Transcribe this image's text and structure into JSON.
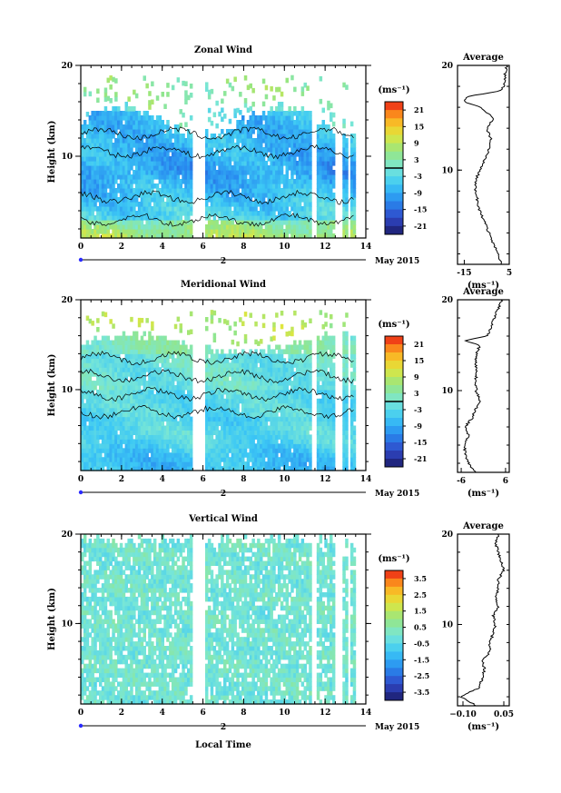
{
  "figure": {
    "xlabel": "Local Time",
    "date_label": "May 2015",
    "date_tick": "2",
    "ylabel": "Height (km)",
    "avg_title": "Average",
    "unit_label": "(ms⁻¹)"
  },
  "chart_data": [
    {
      "type": "heatmap",
      "title": "Zonal Wind",
      "xlabel": "Local Time",
      "ylabel": "Height (km)",
      "xlim": [
        0,
        14
      ],
      "ylim": [
        1,
        20
      ],
      "xticks": [
        0,
        2,
        4,
        6,
        8,
        10,
        12,
        14
      ],
      "yticks": [
        10,
        20
      ],
      "colorbar": {
        "label": "(ms⁻¹)",
        "range": [
          -24,
          24
        ],
        "ticks": [
          21,
          15,
          9,
          3,
          -3,
          -9,
          -15,
          -21
        ],
        "contour": [
          0
        ]
      },
      "gaps": [
        [
          5.5,
          6.1
        ],
        [
          11.3,
          11.6
        ],
        [
          12.5,
          12.8
        ],
        [
          13.1,
          13.2
        ]
      ],
      "profile": {
        "title": "Average",
        "xlabel": "(ms⁻¹)",
        "xlim": [
          -18,
          5
        ],
        "xticks": [
          -15,
          5
        ],
        "yticks": [
          10,
          20
        ],
        "height": [
          1,
          2,
          3,
          4,
          5,
          6,
          7,
          8,
          9,
          10,
          11,
          12,
          13,
          14,
          15,
          16,
          16.5,
          17,
          17.5,
          18,
          19,
          20
        ],
        "values": [
          2,
          0,
          -2,
          -4,
          -6,
          -8,
          -9,
          -10,
          -10,
          -8,
          -6,
          -4,
          -3,
          -5,
          -2,
          -8,
          -15,
          -14,
          0,
          3,
          3,
          4
        ]
      }
    },
    {
      "type": "heatmap",
      "title": "Meridional Wind",
      "xlabel": "Local Time",
      "ylabel": "Height (km)",
      "xlim": [
        0,
        14
      ],
      "ylim": [
        1,
        20
      ],
      "xticks": [
        0,
        2,
        4,
        6,
        8,
        10,
        12,
        14
      ],
      "yticks": [
        10,
        20
      ],
      "colorbar": {
        "label": "(ms⁻¹)",
        "range": [
          -24,
          24
        ],
        "ticks": [
          21,
          15,
          9,
          3,
          -3,
          -9,
          -15,
          -21
        ],
        "contour": [
          0
        ]
      },
      "gaps": [
        [
          5.5,
          6.1
        ],
        [
          11.3,
          11.6
        ],
        [
          12.5,
          12.8
        ],
        [
          13.1,
          13.2
        ]
      ],
      "profile": {
        "title": "Average",
        "xlabel": "(ms⁻¹)",
        "xlim": [
          -7,
          7
        ],
        "xticks": [
          -6,
          6
        ],
        "yticks": [
          10,
          20
        ],
        "height": [
          1,
          2,
          3,
          4,
          5,
          6,
          7,
          8,
          9,
          10,
          11,
          12,
          13,
          14,
          15,
          15.5,
          16,
          17,
          18,
          19,
          20
        ],
        "values": [
          -2,
          -4,
          -5,
          -5,
          -4,
          -5,
          -3,
          -2,
          -1,
          -2,
          -2,
          -2,
          -2,
          -2,
          -1,
          -5,
          1,
          2,
          3,
          4,
          5
        ]
      }
    },
    {
      "type": "heatmap",
      "title": "Vertical Wind",
      "xlabel": "Local Time",
      "ylabel": "Height (km)",
      "xlim": [
        0,
        14
      ],
      "ylim": [
        1,
        20
      ],
      "xticks": [
        0,
        2,
        4,
        6,
        8,
        10,
        12,
        14
      ],
      "yticks": [
        10,
        20
      ],
      "colorbar": {
        "label": "(ms⁻¹)",
        "range": [
          -4,
          4
        ],
        "ticks": [
          3.5,
          2.5,
          1.5,
          0.5,
          -0.5,
          -1.5,
          -2.5,
          -3.5
        ]
      },
      "gaps": [
        [
          5.5,
          6.1
        ],
        [
          11.3,
          11.6
        ],
        [
          12.5,
          12.8
        ],
        [
          13.1,
          13.2
        ]
      ],
      "profile": {
        "title": "Average",
        "xlabel": "(ms⁻¹)",
        "xlim": [
          -0.12,
          0.07
        ],
        "xticks": [
          -0.1,
          0.05
        ],
        "xtick_labels": [
          "−0.10",
          "0.05"
        ],
        "yticks": [
          10,
          20
        ],
        "height": [
          1,
          2,
          3,
          4,
          5,
          6,
          7,
          8,
          9,
          10,
          11,
          12,
          13,
          14,
          15,
          16,
          17,
          18,
          19,
          20
        ],
        "values": [
          -0.05,
          -0.11,
          -0.04,
          -0.03,
          -0.02,
          -0.03,
          0.0,
          0.0,
          0.01,
          0.02,
          0.01,
          0.03,
          0.02,
          0.03,
          0.03,
          0.05,
          0.04,
          0.03,
          0.02,
          0.03
        ]
      }
    }
  ]
}
